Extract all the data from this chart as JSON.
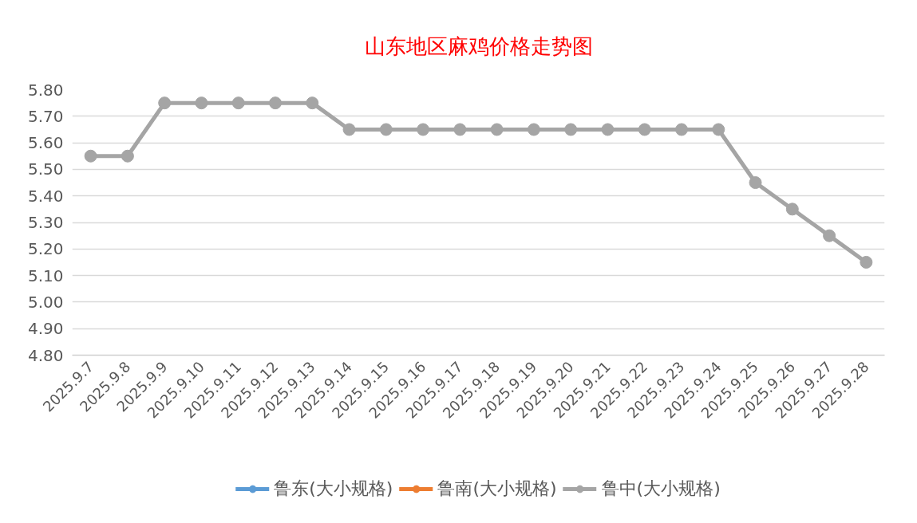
{
  "chart_data": {
    "type": "line",
    "title": "山东地区麻鸡价格走势图",
    "categories": [
      "2025.9.7",
      "2025.9.8",
      "2025.9.9",
      "2025.9.10",
      "2025.9.11",
      "2025.9.12",
      "2025.9.13",
      "2025.9.14",
      "2025.9.15",
      "2025.9.16",
      "2025.9.17",
      "2025.9.18",
      "2025.9.19",
      "2025.9.20",
      "2025.9.21",
      "2025.9.22",
      "2025.9.23",
      "2025.9.24",
      "2025.9.25",
      "2025.9.26",
      "2025.9.27",
      "2025.9.28"
    ],
    "series": [
      {
        "name": "鲁东(大小规格)",
        "color": "#5b9bd5",
        "values": [
          null,
          null,
          null,
          null,
          null,
          null,
          null,
          null,
          null,
          null,
          null,
          null,
          null,
          null,
          null,
          null,
          null,
          null,
          null,
          null,
          null,
          null
        ]
      },
      {
        "name": "鲁南(大小规格)",
        "color": "#ed7d31",
        "values": [
          null,
          null,
          null,
          null,
          null,
          null,
          null,
          null,
          null,
          null,
          null,
          null,
          null,
          null,
          null,
          null,
          null,
          null,
          null,
          null,
          null,
          null
        ]
      },
      {
        "name": "鲁中(大小规格)",
        "color": "#a5a5a5",
        "values": [
          5.55,
          5.55,
          5.75,
          5.75,
          5.75,
          5.75,
          5.75,
          5.65,
          5.65,
          5.65,
          5.65,
          5.65,
          5.65,
          5.65,
          5.65,
          5.65,
          5.65,
          5.65,
          5.45,
          5.35,
          5.25,
          5.15
        ]
      }
    ],
    "ylim": [
      4.8,
      5.8
    ],
    "yticks": [
      {
        "value": 4.8,
        "label": "4.80"
      },
      {
        "value": 4.9,
        "label": "4.90"
      },
      {
        "value": 5.0,
        "label": "5.00"
      },
      {
        "value": 5.1,
        "label": "5.10"
      },
      {
        "value": 5.2,
        "label": "5.20"
      },
      {
        "value": 5.3,
        "label": "5.30"
      },
      {
        "value": 5.4,
        "label": "5.40"
      },
      {
        "value": 5.5,
        "label": "5.50"
      },
      {
        "value": 5.6,
        "label": "5.60"
      },
      {
        "value": 5.7,
        "label": "5.70"
      },
      {
        "value": 5.8,
        "label": "5.80"
      }
    ],
    "grid": "y",
    "legend": "bottom",
    "marker": "circle",
    "line_style": "solid"
  }
}
